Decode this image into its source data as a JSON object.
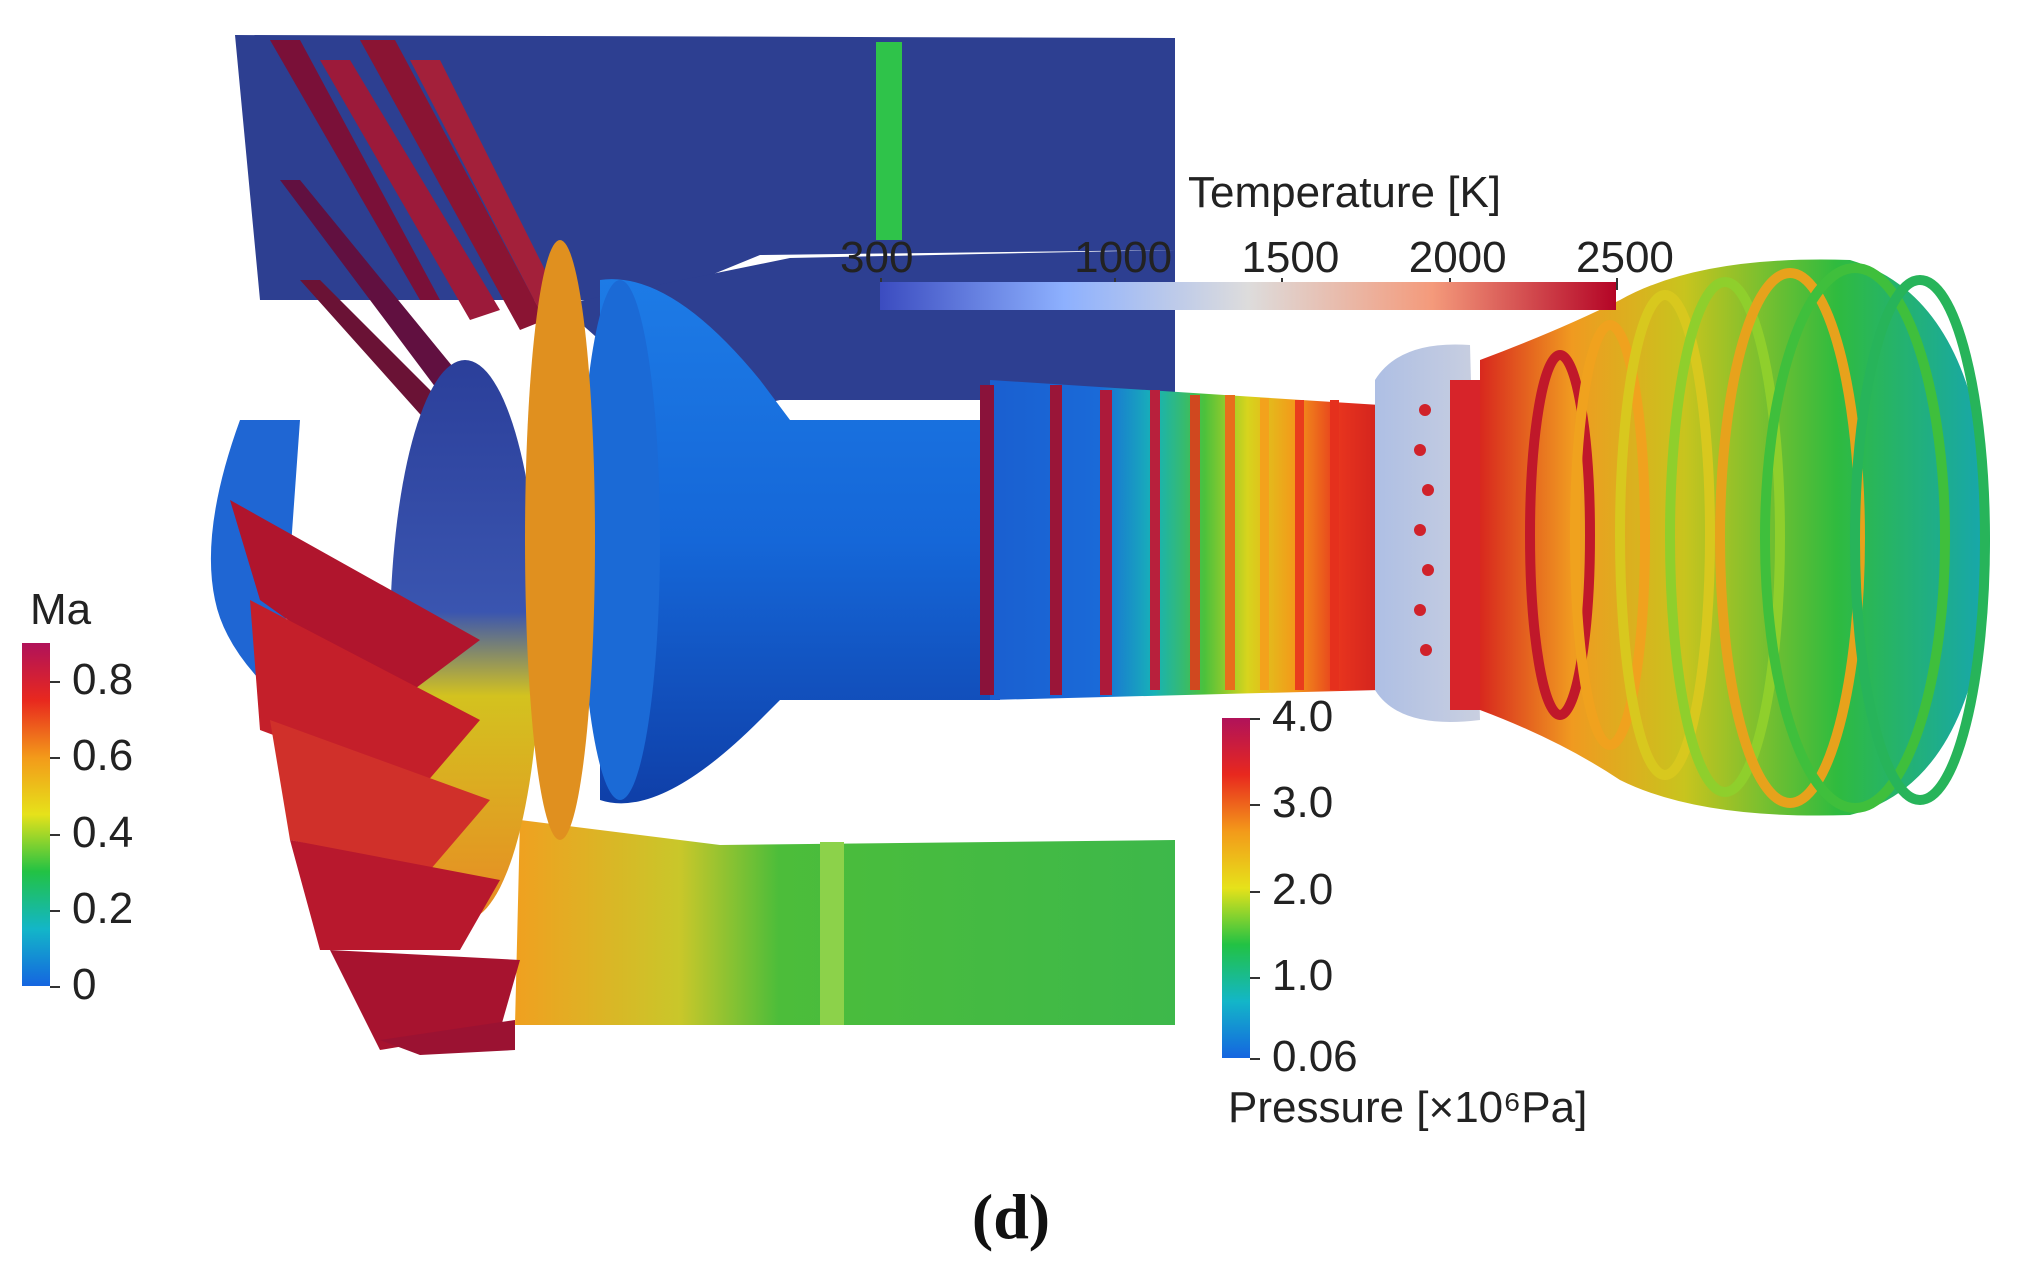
{
  "figure": {
    "caption": "(d)"
  },
  "legends": {
    "temperature": {
      "title": "Temperature [K]",
      "ticks": [
        "300",
        "1000",
        "1500",
        "2000",
        "2500"
      ],
      "tick_values": [
        300,
        1000,
        1500,
        2000,
        2500
      ],
      "range": [
        300,
        2500
      ],
      "colors": [
        "#3b4cc0",
        "#8db0fe",
        "#dddcdc",
        "#f49a7b",
        "#b40426"
      ]
    },
    "mach": {
      "title": "Ma",
      "ticks": [
        "0.8",
        "0.6",
        "0.4",
        "0.2",
        "0"
      ],
      "tick_values": [
        0.8,
        0.6,
        0.4,
        0.2,
        0
      ],
      "range": [
        0,
        0.9
      ],
      "colors": [
        "#1565e0",
        "#13b6c8",
        "#22c244",
        "#e6e21a",
        "#f39a1a",
        "#e8281e",
        "#b0125a"
      ]
    },
    "pressure": {
      "title": "Pressure [×10⁶Pa]",
      "ticks": [
        "4.0",
        "3.0",
        "2.0",
        "1.0",
        "0.06"
      ],
      "tick_values": [
        4.0,
        3.0,
        2.0,
        1.0,
        0.06
      ],
      "range": [
        0.06,
        4.0
      ],
      "colors": [
        "#1565e0",
        "#13b6c8",
        "#22c244",
        "#e6e21a",
        "#f39a1a",
        "#e8281e",
        "#b0125a"
      ]
    }
  }
}
